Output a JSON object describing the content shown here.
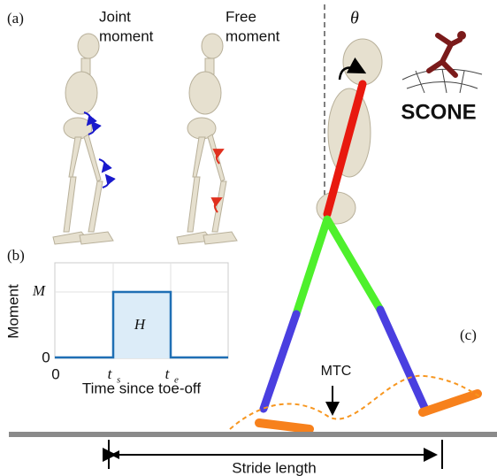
{
  "panel_a": {
    "label": "(a)",
    "joint": [
      "Joint",
      "moment"
    ],
    "free": [
      "Free",
      "moment"
    ]
  },
  "panel_b": {
    "label": "(b)",
    "y_axis_label": "Moment",
    "x_axis_label": "Time since toe-off",
    "y_tick_labels": [
      "0",
      "M"
    ],
    "x_tick_labels": [
      "0",
      "t",
      "t"
    ],
    "x_tick_subscripts": [
      "s",
      "e"
    ],
    "area_label": "H"
  },
  "panel_c": {
    "label": "(c)",
    "angle": "θ",
    "logo": "SCONE",
    "mtc": "MTC",
    "stride": "Stride length"
  }
}
